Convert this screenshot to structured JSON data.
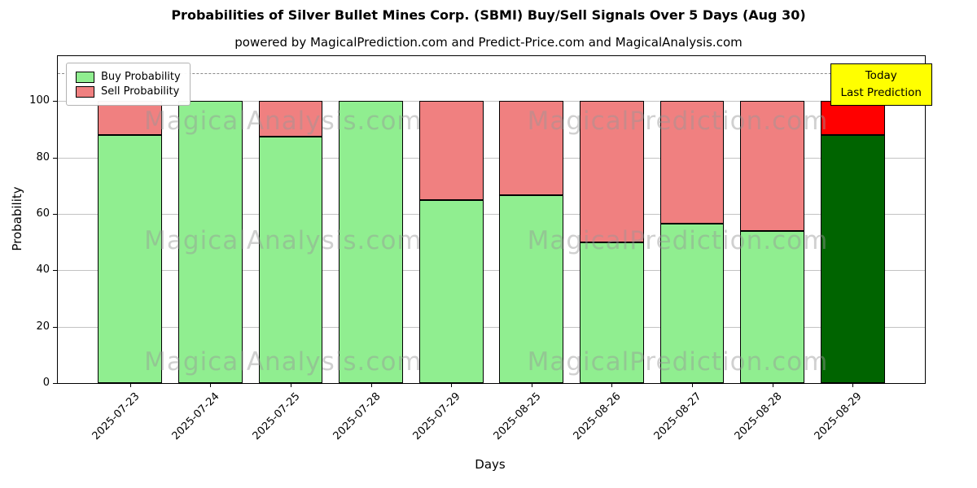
{
  "chart_data": {
    "type": "bar",
    "stacked": true,
    "title": "Probabilities of Silver Bullet Mines Corp. (SBMI) Buy/Sell Signals Over 5 Days (Aug 30)",
    "subtitle": "powered by MagicalPrediction.com and Predict-Price.com and MagicalAnalysis.com",
    "xlabel": "Days",
    "ylabel": "Probability",
    "categories": [
      "2025-07-23",
      "2025-07-24",
      "2025-07-25",
      "2025-07-28",
      "2025-07-29",
      "2025-08-25",
      "2025-08-26",
      "2025-08-27",
      "2025-08-28",
      "2025-08-29"
    ],
    "series": [
      {
        "name": "Buy Probability",
        "values": [
          88,
          100,
          87.5,
          100,
          65,
          66.7,
          50,
          56.5,
          54,
          88
        ]
      },
      {
        "name": "Sell Probability",
        "values": [
          12,
          0,
          12.5,
          0,
          35,
          33.3,
          50,
          43.5,
          46,
          12
        ]
      }
    ],
    "yticks": [
      0,
      20,
      40,
      60,
      80,
      100
    ],
    "ylim": [
      0,
      116
    ],
    "grid": "horizontal",
    "legend_position": "upper-left",
    "dashed_line_y": 110,
    "colors": {
      "buy": "#90ee90",
      "sell": "#f08080",
      "today_buy": "#006400",
      "today_sell": "#ff0000",
      "bar_edge": "#000000",
      "grid": "#c3c3c3",
      "dashed_line": "#8a8a8a",
      "annotation_bg": "#ffff00",
      "annotation_border": "#000000"
    },
    "annotation": {
      "lines": [
        "Today",
        "Last Prediction"
      ],
      "bg": "#ffff00"
    },
    "watermarks": [
      {
        "text": "MagicalAnalysis.com",
        "x": 0.26,
        "y": 0.2
      },
      {
        "text": "MagicalPrediction.com",
        "x": 0.715,
        "y": 0.2
      },
      {
        "text": "MagicalAnalysis.com",
        "x": 0.26,
        "y": 0.565
      },
      {
        "text": "MagicalPrediction.com",
        "x": 0.715,
        "y": 0.565
      },
      {
        "text": "MagicalAnalysis.com",
        "x": 0.26,
        "y": 0.935
      },
      {
        "text": "MagicalPrediction.com",
        "x": 0.715,
        "y": 0.935
      }
    ]
  }
}
